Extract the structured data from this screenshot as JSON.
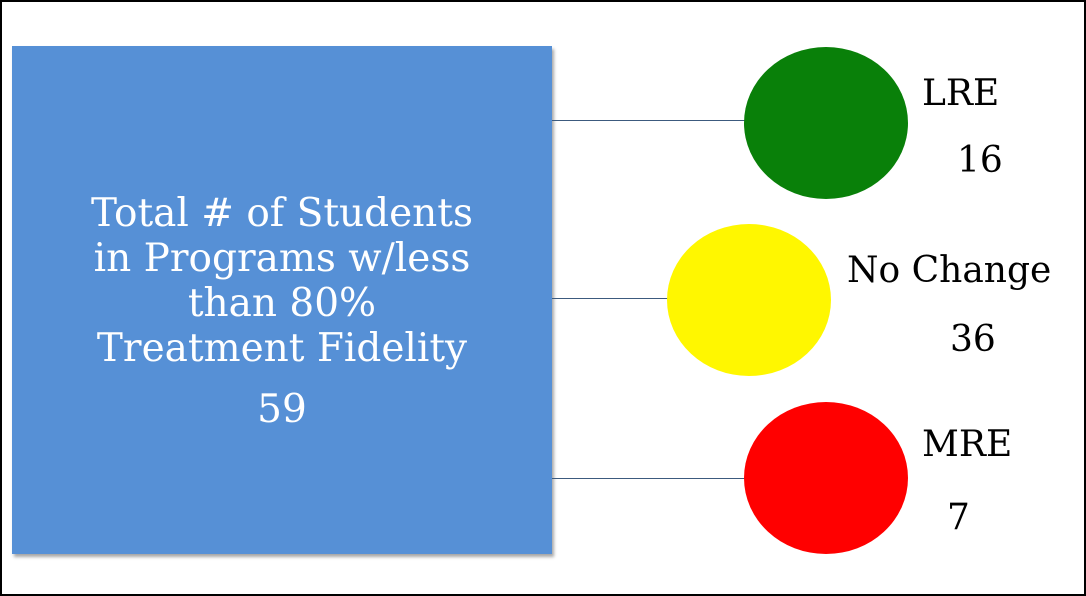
{
  "main": {
    "title_lines": [
      "Total # of Students",
      "in Programs w/less",
      "than 80%",
      "Treatment Fidelity"
    ],
    "value": "59",
    "color": "#5690d6"
  },
  "outcomes": [
    {
      "label": "LRE",
      "value": "16",
      "color": "#098009"
    },
    {
      "label": "No Change",
      "value": "36",
      "color": "#fff700"
    },
    {
      "label": "MRE",
      "value": "7",
      "color": "#ff0000"
    }
  ]
}
